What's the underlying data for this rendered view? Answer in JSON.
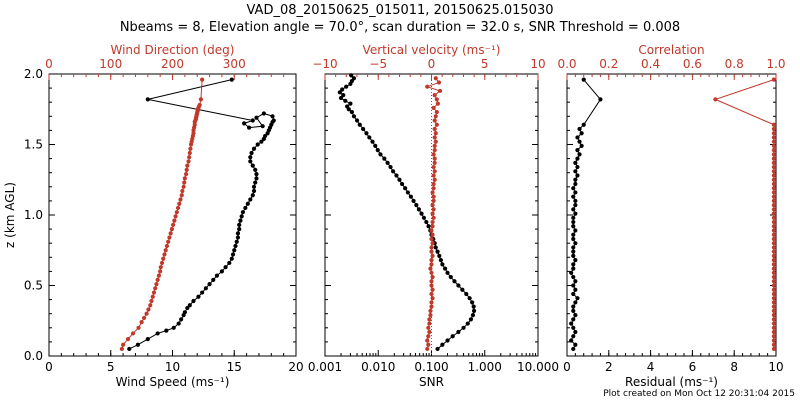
{
  "title_line1": "VAD_08_20150625_015011, 20150625.015030",
  "title_line2": "Nbeams = 8, Elevation angle = 70.0°, scan duration = 32.0 s, SNR Threshold = 0.008",
  "footer": "Plot created on Mon Oct 12 20:31:04 2015",
  "colors": {
    "black": "#000000",
    "red": "#c0392b"
  },
  "chart_data": [
    {
      "type": "scatter",
      "panel": "left",
      "ylabel": "z (km AGL)",
      "ylim": [
        0,
        2.0
      ],
      "yticks": [
        "0.0",
        "0.5",
        "1.0",
        "1.5",
        "2.0"
      ],
      "xlabel": "Wind Speed (ms⁻¹)",
      "xlim": [
        0,
        20
      ],
      "xticks": [
        "0",
        "5",
        "10",
        "15",
        "20"
      ],
      "x2label": "Wind Direction (deg)",
      "x2lim": [
        0,
        400
      ],
      "x2ticks": [
        "0",
        "100",
        "200",
        "300"
      ],
      "series": [
        {
          "color": "#000000",
          "axis": "bottom",
          "x": [
            6.5,
            7.2,
            8.0,
            8.8,
            9.5,
            10.1,
            10.5,
            10.7,
            10.9,
            11.0,
            11.2,
            11.4,
            11.7,
            12.1,
            12.4,
            12.7,
            13.0,
            13.3,
            13.6,
            14.0,
            14.3,
            14.6,
            14.8,
            14.9,
            15.0,
            15.1,
            15.2,
            15.3,
            15.3,
            15.4,
            15.4,
            15.5,
            15.6,
            15.7,
            15.9,
            16.1,
            16.3,
            16.5,
            16.6,
            16.6,
            16.7,
            16.8,
            16.8,
            16.7,
            16.5,
            16.3,
            16.3,
            16.4,
            16.6,
            16.9,
            17.2,
            17.4,
            17.5,
            17.7,
            17.8,
            17.9,
            18.0,
            18.1,
            18.2,
            18.1,
            17.4,
            16.8,
            17.3,
            16.2,
            15.8,
            16.5,
            8.0,
            14.8
          ],
          "y": [
            0.05,
            0.08,
            0.12,
            0.16,
            0.18,
            0.2,
            0.23,
            0.26,
            0.29,
            0.31,
            0.34,
            0.36,
            0.39,
            0.42,
            0.45,
            0.48,
            0.51,
            0.54,
            0.57,
            0.6,
            0.63,
            0.66,
            0.69,
            0.72,
            0.75,
            0.78,
            0.81,
            0.84,
            0.87,
            0.9,
            0.93,
            0.96,
            0.99,
            1.02,
            1.05,
            1.08,
            1.11,
            1.14,
            1.17,
            1.2,
            1.23,
            1.26,
            1.29,
            1.32,
            1.35,
            1.38,
            1.41,
            1.44,
            1.47,
            1.5,
            1.52,
            1.54,
            1.56,
            1.58,
            1.6,
            1.62,
            1.64,
            1.66,
            1.67,
            1.7,
            1.72,
            1.69,
            1.63,
            1.62,
            1.65,
            1.67,
            1.82,
            1.96
          ]
        },
        {
          "color": "#c0392b",
          "axis": "top",
          "x": [
            118,
            120,
            128,
            136,
            145,
            150,
            154,
            158,
            161,
            164,
            166,
            168,
            170,
            172,
            174,
            176,
            178,
            180,
            181,
            183,
            185,
            187,
            189,
            191,
            193,
            195,
            197,
            199,
            201,
            203,
            205,
            207,
            209,
            211,
            213,
            215,
            216,
            218,
            219,
            220,
            222,
            223,
            224,
            226,
            227,
            228,
            229,
            230,
            231,
            232,
            233,
            234,
            234,
            235,
            236,
            236,
            237,
            238,
            238,
            239,
            239,
            240,
            240,
            241,
            241,
            242,
            243,
            244,
            246,
            248
          ],
          "y": [
            0.05,
            0.08,
            0.12,
            0.16,
            0.2,
            0.24,
            0.27,
            0.3,
            0.33,
            0.36,
            0.39,
            0.42,
            0.45,
            0.48,
            0.51,
            0.54,
            0.57,
            0.6,
            0.63,
            0.66,
            0.69,
            0.72,
            0.75,
            0.78,
            0.81,
            0.84,
            0.87,
            0.9,
            0.93,
            0.96,
            0.99,
            1.02,
            1.05,
            1.08,
            1.11,
            1.14,
            1.17,
            1.2,
            1.23,
            1.26,
            1.29,
            1.32,
            1.35,
            1.38,
            1.41,
            1.44,
            1.47,
            1.5,
            1.52,
            1.54,
            1.56,
            1.58,
            1.6,
            1.62,
            1.64,
            1.66,
            1.67,
            1.68,
            1.69,
            1.7,
            1.71,
            1.72,
            1.73,
            1.74,
            1.75,
            1.76,
            1.77,
            1.78,
            1.82,
            1.96
          ]
        }
      ]
    },
    {
      "type": "scatter",
      "panel": "middle",
      "ylim": [
        0,
        2.0
      ],
      "xlabel": "SNR",
      "xscale": "log",
      "xlim": [
        0.001,
        10
      ],
      "xticks": [
        "0.001",
        "0.010",
        "0.100",
        "1.000",
        "10.000"
      ],
      "x2label": "Vertical velocity (ms⁻¹)",
      "x2lim": [
        -10,
        10
      ],
      "x2ticks": [
        "−10",
        "−5",
        "0",
        "5",
        "10"
      ],
      "series": [
        {
          "color": "#000000",
          "axis": "bottom",
          "x": [
            0.13,
            0.16,
            0.2,
            0.25,
            0.32,
            0.4,
            0.48,
            0.55,
            0.6,
            0.63,
            0.62,
            0.58,
            0.52,
            0.45,
            0.38,
            0.32,
            0.27,
            0.23,
            0.2,
            0.18,
            0.16,
            0.15,
            0.14,
            0.13,
            0.12,
            0.115,
            0.108,
            0.1,
            0.095,
            0.088,
            0.08,
            0.072,
            0.065,
            0.058,
            0.052,
            0.046,
            0.041,
            0.036,
            0.032,
            0.028,
            0.025,
            0.022,
            0.019,
            0.017,
            0.015,
            0.013,
            0.011,
            0.0098,
            0.0088,
            0.0078,
            0.0068,
            0.006,
            0.0052,
            0.0045,
            0.004,
            0.0035,
            0.0032,
            0.0028,
            0.0026,
            0.003,
            0.0024,
            0.002,
            0.0022,
            0.0019,
            0.0021,
            0.0025,
            0.003,
            0.0032,
            0.0035,
            0.0031
          ],
          "y": [
            0.05,
            0.08,
            0.11,
            0.14,
            0.17,
            0.2,
            0.23,
            0.26,
            0.29,
            0.32,
            0.35,
            0.38,
            0.41,
            0.44,
            0.47,
            0.5,
            0.53,
            0.56,
            0.59,
            0.62,
            0.65,
            0.68,
            0.71,
            0.74,
            0.77,
            0.8,
            0.83,
            0.86,
            0.89,
            0.92,
            0.95,
            0.98,
            1.01,
            1.04,
            1.07,
            1.1,
            1.13,
            1.16,
            1.19,
            1.22,
            1.25,
            1.28,
            1.31,
            1.34,
            1.37,
            1.4,
            1.43,
            1.46,
            1.49,
            1.52,
            1.55,
            1.58,
            1.61,
            1.64,
            1.67,
            1.7,
            1.73,
            1.75,
            1.77,
            1.79,
            1.81,
            1.83,
            1.85,
            1.87,
            1.89,
            1.91,
            1.93,
            1.95,
            1.97,
            1.99
          ]
        },
        {
          "color": "#c0392b",
          "axis": "top",
          "x": [
            -0.4,
            -0.3,
            -0.4,
            -0.3,
            -0.2,
            -0.3,
            -0.2,
            -0.2,
            -0.1,
            -0.1,
            0.0,
            0.0,
            0.1,
            0.0,
            0.1,
            0.0,
            0.0,
            0.1,
            0.0,
            -0.1,
            0.0,
            0.0,
            0.1,
            0.0,
            0.0,
            0.1,
            0.0,
            0.1,
            0.0,
            0.1,
            0.1,
            0.2,
            0.1,
            0.2,
            0.1,
            0.2,
            0.2,
            0.1,
            0.2,
            0.2,
            0.3,
            0.2,
            0.3,
            0.2,
            0.3,
            0.3,
            0.2,
            0.3,
            0.3,
            0.4,
            0.3,
            0.4,
            0.3,
            0.5,
            0.3,
            0.4,
            0.5,
            0.2,
            0.6,
            0.5,
            0.3,
            0.8,
            -0.4,
            0.7,
            0.4
          ],
          "y": [
            0.05,
            0.08,
            0.11,
            0.14,
            0.17,
            0.2,
            0.23,
            0.26,
            0.29,
            0.32,
            0.35,
            0.38,
            0.41,
            0.44,
            0.47,
            0.5,
            0.53,
            0.56,
            0.59,
            0.62,
            0.65,
            0.68,
            0.71,
            0.74,
            0.77,
            0.8,
            0.83,
            0.86,
            0.89,
            0.92,
            0.95,
            0.98,
            1.01,
            1.04,
            1.07,
            1.1,
            1.13,
            1.16,
            1.19,
            1.22,
            1.25,
            1.28,
            1.31,
            1.34,
            1.37,
            1.4,
            1.43,
            1.46,
            1.49,
            1.52,
            1.55,
            1.58,
            1.61,
            1.64,
            1.67,
            1.7,
            1.73,
            1.76,
            1.79,
            1.82,
            1.85,
            1.88,
            1.91,
            1.94,
            1.97
          ]
        }
      ]
    },
    {
      "type": "scatter",
      "panel": "right",
      "ylim": [
        0,
        2.0
      ],
      "xlabel": "Residual (ms⁻¹)",
      "xlim": [
        0,
        10
      ],
      "xticks": [
        "0",
        "2",
        "4",
        "6",
        "8",
        "10"
      ],
      "x2label": "Correlation",
      "x2lim": [
        0,
        1.0
      ],
      "x2ticks": [
        "0.0",
        "0.2",
        "0.4",
        "0.6",
        "0.8",
        "1.0"
      ],
      "series": [
        {
          "color": "#000000",
          "axis": "bottom",
          "x": [
            0.3,
            0.4,
            0.2,
            0.3,
            0.4,
            0.3,
            0.2,
            0.3,
            0.4,
            0.3,
            0.3,
            0.4,
            0.5,
            0.3,
            0.4,
            0.3,
            0.4,
            0.3,
            0.2,
            0.3,
            0.3,
            0.4,
            0.3,
            0.3,
            0.3,
            0.4,
            0.3,
            0.3,
            0.4,
            0.3,
            0.3,
            0.3,
            0.4,
            0.3,
            0.4,
            0.4,
            0.3,
            0.4,
            0.3,
            0.4,
            0.4,
            0.5,
            0.4,
            0.5,
            0.4,
            0.5,
            0.6,
            0.5,
            0.7,
            0.6,
            0.5,
            0.7,
            0.6,
            0.8,
            1.6,
            0.8
          ],
          "y": [
            0.05,
            0.08,
            0.11,
            0.14,
            0.17,
            0.2,
            0.23,
            0.26,
            0.29,
            0.32,
            0.35,
            0.38,
            0.41,
            0.44,
            0.47,
            0.5,
            0.53,
            0.56,
            0.59,
            0.62,
            0.65,
            0.68,
            0.71,
            0.74,
            0.77,
            0.8,
            0.83,
            0.86,
            0.89,
            0.92,
            0.95,
            0.98,
            1.01,
            1.04,
            1.07,
            1.1,
            1.13,
            1.16,
            1.19,
            1.22,
            1.25,
            1.28,
            1.31,
            1.34,
            1.37,
            1.4,
            1.43,
            1.46,
            1.49,
            1.52,
            1.55,
            1.58,
            1.61,
            1.64,
            1.82,
            1.96
          ]
        },
        {
          "color": "#c0392b",
          "axis": "top",
          "x": [
            0.99,
            0.99,
            0.99,
            0.99,
            0.99,
            0.99,
            0.99,
            0.99,
            0.99,
            0.99,
            0.99,
            0.99,
            0.99,
            0.99,
            0.99,
            0.99,
            0.99,
            0.99,
            0.99,
            0.99,
            0.99,
            0.99,
            0.99,
            0.99,
            0.99,
            0.99,
            0.99,
            0.99,
            0.99,
            0.99,
            0.99,
            0.99,
            0.99,
            0.99,
            0.99,
            0.99,
            0.99,
            0.99,
            0.99,
            0.99,
            0.99,
            0.99,
            0.99,
            0.99,
            0.99,
            0.99,
            0.99,
            0.99,
            0.99,
            0.99,
            0.99,
            0.99,
            0.99,
            0.99,
            0.71,
            0.99
          ],
          "y": [
            0.05,
            0.08,
            0.11,
            0.14,
            0.17,
            0.2,
            0.23,
            0.26,
            0.29,
            0.32,
            0.35,
            0.38,
            0.41,
            0.44,
            0.47,
            0.5,
            0.53,
            0.56,
            0.59,
            0.62,
            0.65,
            0.68,
            0.71,
            0.74,
            0.77,
            0.8,
            0.83,
            0.86,
            0.89,
            0.92,
            0.95,
            0.98,
            1.01,
            1.04,
            1.07,
            1.1,
            1.13,
            1.16,
            1.19,
            1.22,
            1.25,
            1.28,
            1.31,
            1.34,
            1.37,
            1.4,
            1.43,
            1.46,
            1.49,
            1.52,
            1.55,
            1.58,
            1.61,
            1.64,
            1.82,
            1.96
          ]
        }
      ]
    }
  ]
}
